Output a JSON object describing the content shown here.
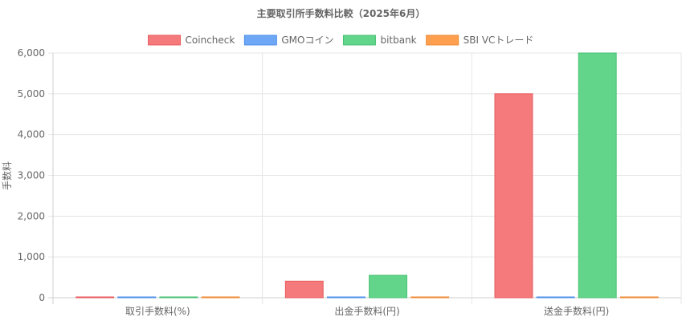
{
  "chart_data": {
    "type": "bar",
    "title": "主要取引所手数料比較（2025年6月）",
    "ylabel": "手数料",
    "xlabel": "",
    "ylim": [
      0,
      6000
    ],
    "yticks": [
      0,
      1000,
      2000,
      3000,
      4000,
      5000,
      6000
    ],
    "ytick_labels": [
      "0",
      "1,000",
      "2,000",
      "3,000",
      "4,000",
      "5,000",
      "6,000"
    ],
    "grid": true,
    "legend_position": "top",
    "categories": [
      "取引手数料(%)",
      "出金手数料(円)",
      "送金手数料(円)"
    ],
    "series": [
      {
        "name": "Coincheck",
        "color": "#f47a7b",
        "border": "#e85a5c",
        "values": [
          0,
          407,
          5000
        ]
      },
      {
        "name": "GMOコイン",
        "color": "#6ea7f5",
        "border": "#4f8fe9",
        "values": [
          0,
          0,
          0
        ]
      },
      {
        "name": "bitbank",
        "color": "#62d58a",
        "border": "#48c274",
        "values": [
          0,
          550,
          6000
        ]
      },
      {
        "name": "SBI VCトレード",
        "color": "#fd9f4f",
        "border": "#ef8a33",
        "values": [
          0,
          0,
          0
        ]
      }
    ]
  }
}
